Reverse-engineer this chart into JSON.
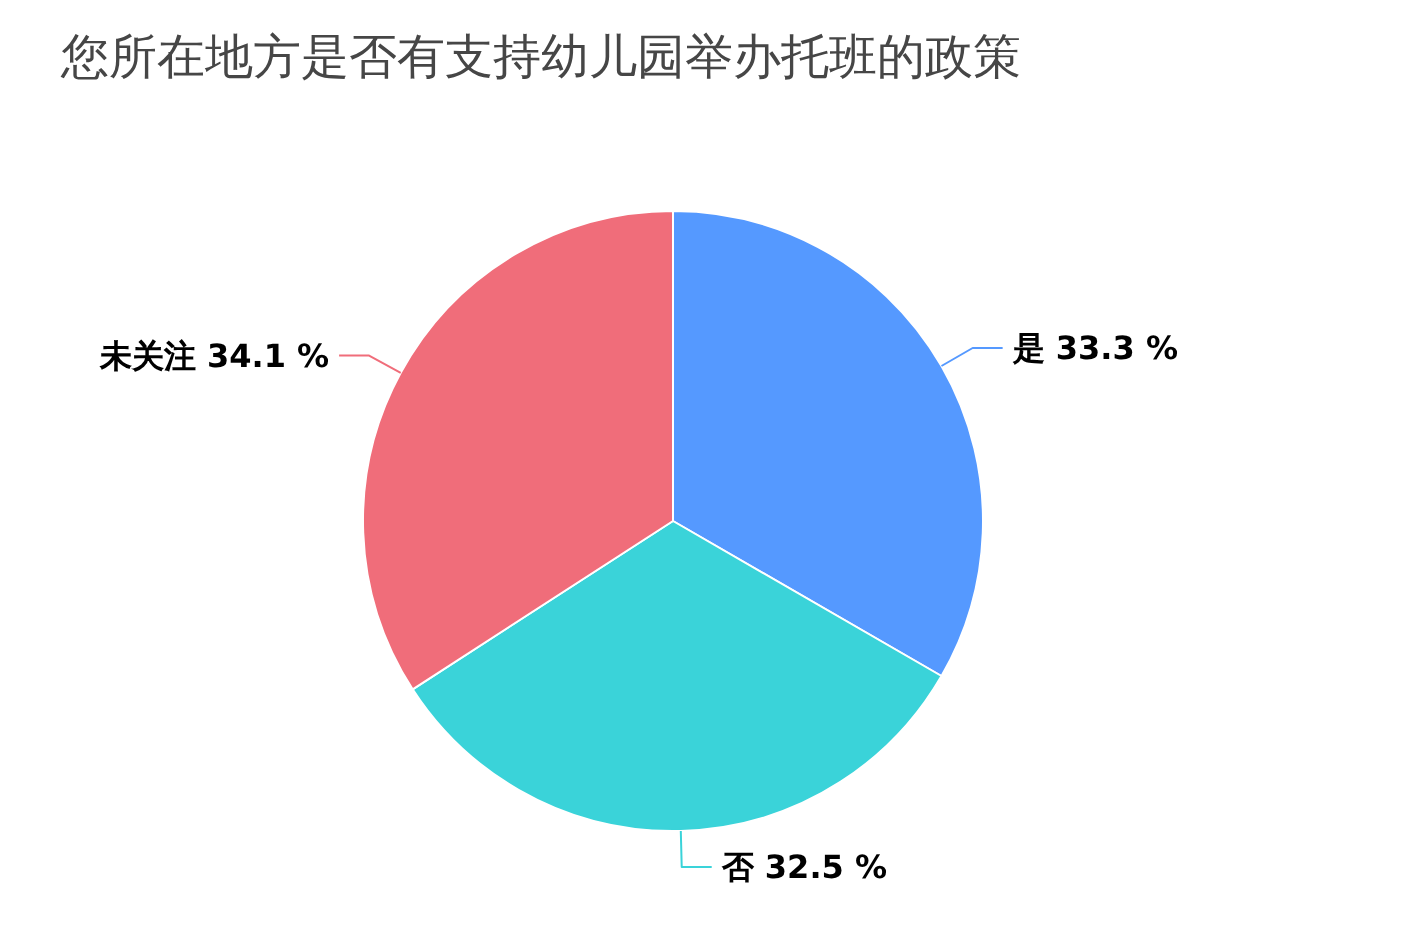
{
  "chart_data": {
    "type": "pie",
    "title": "您所在地方是否有支持幼儿园举办托班的政策",
    "categories": [
      "是",
      "否",
      "未关注"
    ],
    "values": [
      33.3,
      32.5,
      34.1
    ],
    "value_labels": [
      "33.3 %",
      "32.5 %",
      "34.1 %"
    ],
    "colors": [
      "#5599ff",
      "#3ad3d9",
      "#f06d7a"
    ],
    "legend": false
  }
}
